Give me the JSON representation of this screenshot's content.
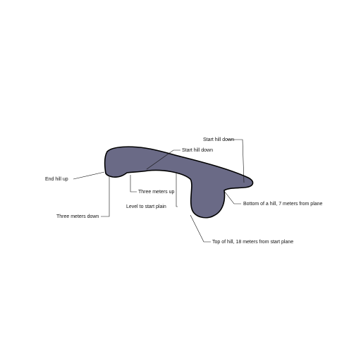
{
  "colors": {
    "background": "#ffffff",
    "shape_fill": "#6a6a86",
    "shape_outline": "#000000",
    "text": "#111111"
  },
  "labels": {
    "start_hill_down_top": "Start hill down",
    "start_hill_down_mid": "Start hill down",
    "end_hill_up": "End hill up",
    "three_meters_up": "Three meters up",
    "level_to_start_plain": "Level to start plain",
    "three_meters_down": "Three meters down",
    "bottom_of_hill": "Bottom of a hill, 7 meters from plane",
    "top_of_hill": "Top of hill, 18 meters from start plane"
  }
}
